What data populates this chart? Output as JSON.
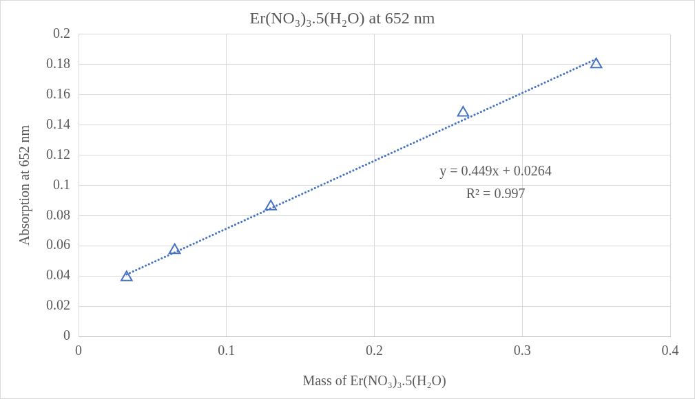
{
  "chart_data": {
    "type": "scatter",
    "title": "Er(NO₃)₃.5(H₂O) at 652 nm",
    "xlabel": "Mass of Er(NO₃)₃.5(H₂O)",
    "ylabel": "Absorption at 652 nm",
    "annotations": [
      "y = 0.449x + 0.0264",
      "R² = 0.997"
    ],
    "series": [
      {
        "type": "scatter",
        "color": "#4472c4",
        "x": [
          0.0325,
          0.065,
          0.13,
          0.26,
          0.35
        ],
        "values": [
          0.039,
          0.057,
          0.086,
          0.148,
          0.18
        ],
        "marker": "triangle"
      },
      {
        "type": "line",
        "color": "#4472c4",
        "x": [
          0.0325,
          0.35
        ],
        "values": [
          0.041,
          0.1836
        ],
        "line_style": "dotted",
        "marker": "none"
      }
    ],
    "xlim": [
      0,
      0.4
    ],
    "xticks": [
      0,
      0.1,
      0.2,
      0.3,
      0.4
    ],
    "ylim": [
      0,
      0.2
    ],
    "yticks": [
      0,
      0.02,
      0.04,
      0.06,
      0.08,
      0.1,
      0.12,
      0.14,
      0.16,
      0.18,
      0.2
    ],
    "grid": true
  }
}
